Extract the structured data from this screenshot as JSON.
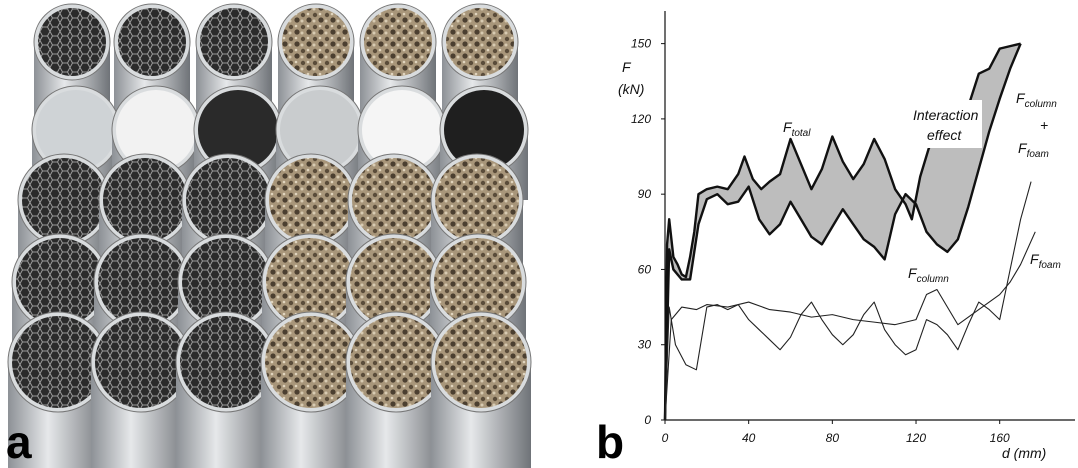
{
  "panel_labels": [
    "a",
    "b"
  ],
  "chart_data": {
    "type": "line",
    "y_label": {
      "symbol": "F",
      "unit": "(kN)"
    },
    "x_label": "d (mm)",
    "xlim": [
      0,
      196
    ],
    "ylim": [
      0,
      163
    ],
    "xticks": [
      0,
      40,
      80,
      120,
      160
    ],
    "yticks": [
      0,
      30,
      60,
      90,
      120,
      150
    ],
    "fill_color": "#bdbdbd",
    "series": [
      {
        "width": 2.4,
        "color": "#111111",
        "x": [
          0,
          1,
          2,
          4,
          6,
          8,
          10,
          12,
          14,
          16,
          20,
          25,
          30,
          35,
          38,
          42,
          46,
          50,
          55,
          60,
          65,
          70,
          75,
          80,
          85,
          90,
          95,
          100,
          105,
          110,
          115,
          118,
          122,
          126,
          130,
          135,
          140,
          145,
          150,
          155,
          160,
          165,
          170
        ],
        "values": [
          0,
          70,
          80,
          65,
          62,
          58,
          57,
          65,
          75,
          90,
          92,
          93,
          92,
          98,
          105,
          96,
          92,
          95,
          98,
          112,
          102,
          92,
          100,
          113,
          103,
          96,
          102,
          112,
          104,
          92,
          86,
          80,
          97,
          108,
          116,
          118,
          120,
          125,
          138,
          140,
          148,
          149,
          150
        ]
      },
      {
        "width": 2.4,
        "color": "#111111",
        "x": [
          0,
          2,
          4,
          8,
          12,
          16,
          20,
          25,
          30,
          35,
          40,
          45,
          50,
          55,
          60,
          65,
          70,
          75,
          80,
          85,
          90,
          95,
          100,
          105,
          110,
          115,
          120,
          125,
          130,
          135,
          140,
          145,
          150,
          155,
          160,
          165,
          170
        ],
        "values": [
          0,
          68,
          60,
          56,
          56,
          78,
          88,
          90,
          86,
          87,
          93,
          80,
          74,
          78,
          87,
          80,
          73,
          70,
          77,
          84,
          78,
          72,
          69,
          64,
          82,
          90,
          86,
          75,
          70,
          67,
          72,
          85,
          100,
          115,
          128,
          140,
          150
        ]
      },
      {
        "width": 1.1,
        "color": "#222222",
        "x": [
          0,
          2,
          5,
          10,
          15,
          20,
          25,
          30,
          35,
          40,
          45,
          50,
          55,
          60,
          65,
          70,
          75,
          80,
          85,
          90,
          95,
          100,
          105,
          110,
          115,
          120,
          125,
          130,
          135,
          140,
          145,
          150,
          155,
          160,
          165,
          170,
          175
        ],
        "values": [
          0,
          45,
          30,
          22,
          20,
          45,
          46,
          44,
          46,
          40,
          36,
          32,
          28,
          33,
          42,
          47,
          40,
          34,
          30,
          34,
          42,
          47,
          36,
          30,
          26,
          28,
          40,
          38,
          34,
          28,
          38,
          47,
          44,
          40,
          60,
          80,
          95
        ]
      },
      {
        "width": 1.1,
        "color": "#222222",
        "x": [
          0,
          3,
          8,
          15,
          20,
          30,
          40,
          50,
          60,
          70,
          80,
          90,
          100,
          110,
          120,
          125,
          130,
          140,
          150,
          160,
          165,
          170,
          177
        ],
        "values": [
          0,
          40,
          45,
          44,
          46,
          45,
          47,
          44,
          43,
          41,
          42,
          40,
          39,
          38,
          40,
          50,
          52,
          38,
          44,
          50,
          55,
          62,
          75
        ]
      }
    ],
    "annotations": {
      "total": {
        "symbol": "F",
        "sub": "total"
      },
      "interaction": [
        "Interaction",
        "effect"
      ],
      "sum": {
        "first": {
          "symbol": "F",
          "sub": "column"
        },
        "plus": "+",
        "second": {
          "symbol": "F",
          "sub": "foam"
        }
      },
      "column": {
        "symbol": "F",
        "sub": "column"
      },
      "foam": {
        "symbol": "F",
        "sub": "foam"
      }
    }
  }
}
